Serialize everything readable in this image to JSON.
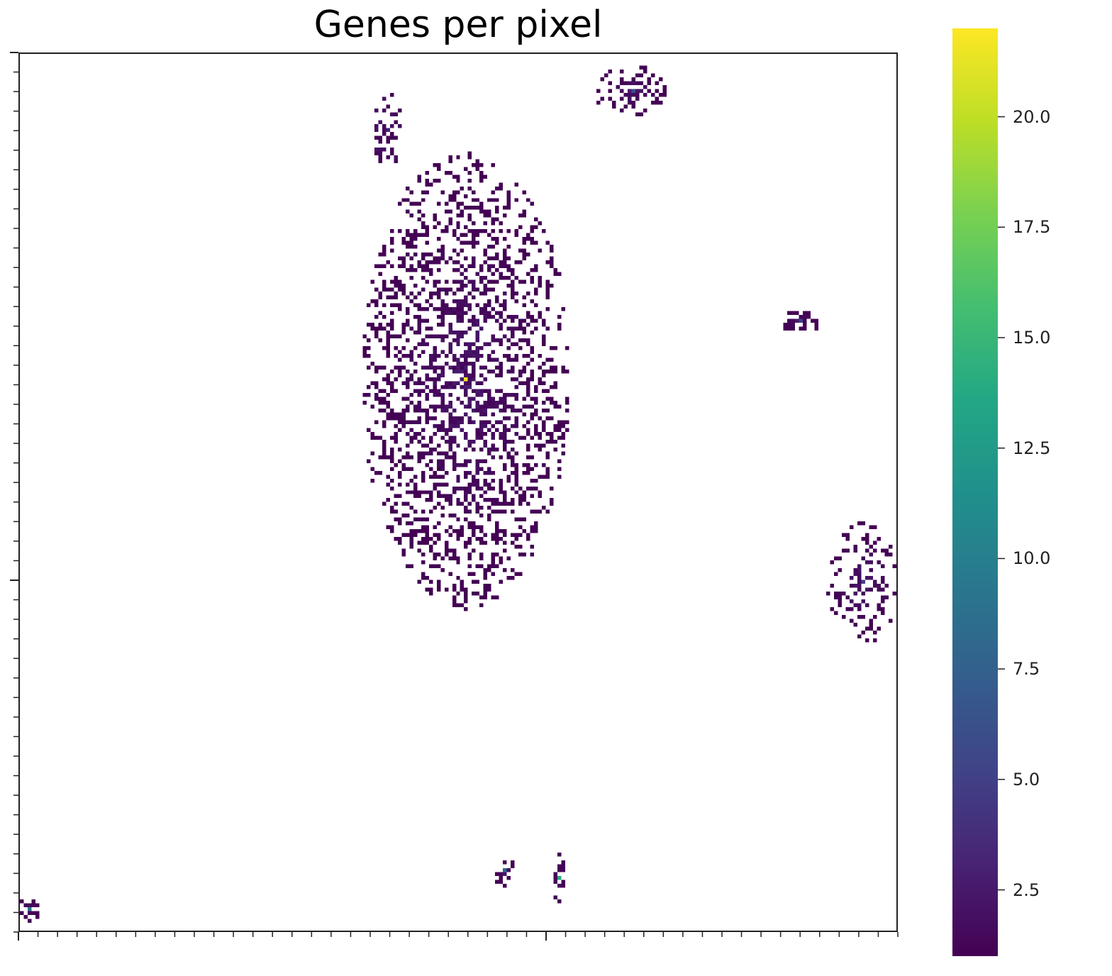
{
  "chart_data": {
    "type": "heatmap",
    "title": "Genes per pixel",
    "xlabel": "",
    "ylabel": "",
    "grid_size": [
      225,
      225
    ],
    "colormap": "viridis",
    "colorbar": {
      "vmin": 1,
      "vmax": 22,
      "ticks": [
        2.5,
        5.0,
        7.5,
        10.0,
        12.5,
        15.0,
        17.5,
        20.0
      ],
      "tick_labels": [
        "2.5",
        "5.0",
        "7.5",
        "10.0",
        "12.5",
        "15.0",
        "17.5",
        "20.0"
      ]
    },
    "x_ticks": "unlabeled minor ticks every 5 cells, major tick at center",
    "y_ticks": "unlabeled minor ticks every 5 cells",
    "clusters": [
      {
        "name": "main",
        "center": [
          114,
          83
        ],
        "radius": [
          27,
          59
        ],
        "density": 0.55,
        "peak": 22
      },
      {
        "name": "top-left-blob",
        "center": [
          94,
          19
        ],
        "radius": [
          4,
          10
        ],
        "density": 0.45,
        "peak": 3
      },
      {
        "name": "top-blob",
        "center": [
          157,
          9
        ],
        "radius": [
          10,
          7
        ],
        "density": 0.5,
        "peak": 6
      },
      {
        "name": "right-small",
        "center": [
          200,
          68
        ],
        "radius": [
          6,
          3
        ],
        "density": 0.7,
        "peak": 5
      },
      {
        "name": "right-cluster",
        "center": [
          216,
          135
        ],
        "radius": [
          10,
          16
        ],
        "density": 0.45,
        "peak": 5
      },
      {
        "name": "bottom-a",
        "center": [
          124,
          209
        ],
        "radius": [
          3,
          5
        ],
        "density": 0.5,
        "peak": 8
      },
      {
        "name": "bottom-b",
        "center": [
          138,
          211
        ],
        "radius": [
          2,
          6
        ],
        "density": 0.5,
        "peak": 14
      },
      {
        "name": "bottom-left",
        "center": [
          2,
          219
        ],
        "radius": [
          3,
          3
        ],
        "density": 0.8,
        "peak": 9
      }
    ]
  }
}
